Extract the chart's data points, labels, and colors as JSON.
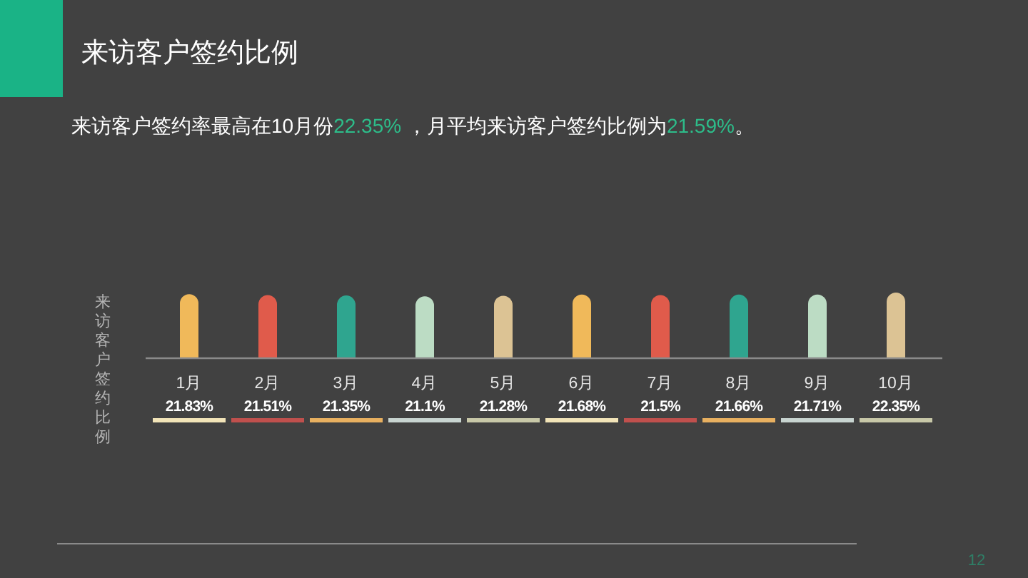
{
  "chart_data": {
    "type": "bar",
    "title": "来访客户签约比例",
    "subtitle": "来访客户签约率最高在10月份22.35% ，月平均来访客户签约比例为21.59%。",
    "ylabel": "来访客户签约比例",
    "categories": [
      "1月",
      "2月",
      "3月",
      "4月",
      "5月",
      "6月",
      "7月",
      "8月",
      "9月",
      "10月"
    ],
    "values": [
      21.83,
      21.51,
      21.35,
      21.1,
      21.28,
      21.68,
      21.5,
      21.66,
      21.71,
      22.35
    ],
    "value_labels": [
      "21.83%",
      "21.51%",
      "21.35%",
      "21.1%",
      "21.28%",
      "21.68%",
      "21.5%",
      "21.66%",
      "21.71%",
      "22.35%"
    ],
    "colors": [
      "#f0b95a",
      "#e05b4b",
      "#2fa58f",
      "#bcdcc4",
      "#dcc394",
      "#f0b95a",
      "#e05b4b",
      "#2fa58f",
      "#bcdcc4",
      "#dcc394"
    ],
    "tick_labels": "x",
    "annotations": [
      "12"
    ]
  }
}
